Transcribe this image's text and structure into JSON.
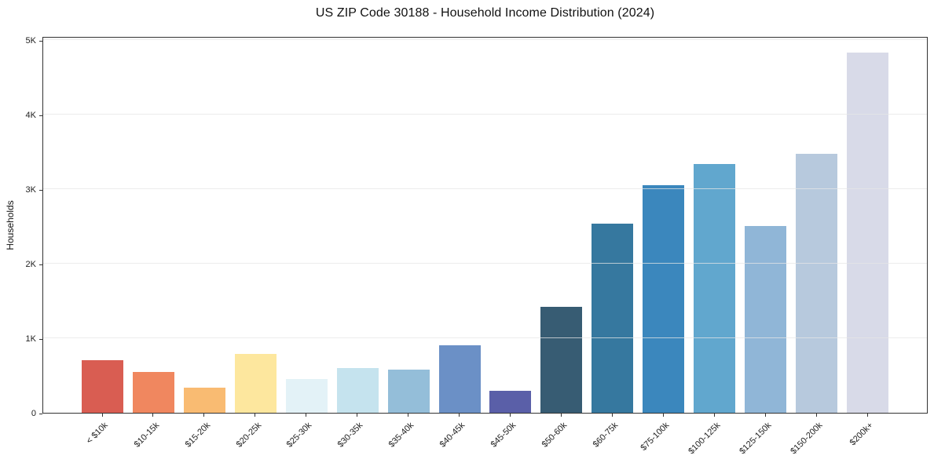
{
  "chart_data": {
    "type": "bar",
    "title": "US ZIP Code 30188 - Household Income Distribution (2024)",
    "xlabel": "",
    "ylabel": "Households",
    "categories": [
      "< $10k",
      "$10-15k",
      "$15-20k",
      "$20-25k",
      "$25-30k",
      "$30-35k",
      "$35-40k",
      "$40-45k",
      "$45-50k",
      "$50-60k",
      "$60-75k",
      "$75-100k",
      "$100-125k",
      "$125-150k",
      "$150-200k",
      "$200k+"
    ],
    "values": [
      705,
      550,
      335,
      785,
      455,
      595,
      580,
      900,
      300,
      1420,
      2540,
      3055,
      3340,
      2505,
      3475,
      4830
    ],
    "bar_colors": [
      "#d95d52",
      "#f0875f",
      "#f9bb72",
      "#fde79e",
      "#e3f2f7",
      "#c5e3ee",
      "#94bed9",
      "#6b90c6",
      "#5a5fa8",
      "#375c73",
      "#36789f",
      "#3b87bd",
      "#61a7ce",
      "#90b6d7",
      "#b7c9dd",
      "#d8dae8"
    ],
    "ylim": [
      0,
      5050
    ],
    "yticks": [
      {
        "value": 0,
        "label": "0"
      },
      {
        "value": 1000,
        "label": "1K"
      },
      {
        "value": 2000,
        "label": "2K"
      },
      {
        "value": 3000,
        "label": "3K"
      },
      {
        "value": 4000,
        "label": "4K"
      },
      {
        "value": 5000,
        "label": "5K"
      }
    ],
    "x_tick_rotation": 45,
    "grid": "horizontal",
    "legend": "none"
  }
}
